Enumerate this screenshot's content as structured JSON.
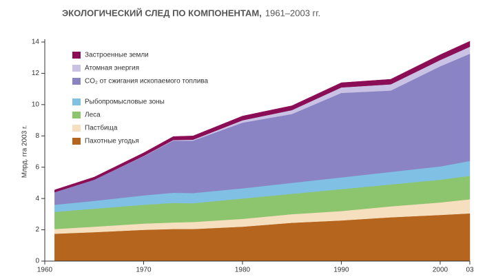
{
  "chart_data": {
    "type": "stacked_area",
    "title": "ЭКОЛОГИЧЕСКИЙ СЛЕД ПО КОМПОНЕНТАМ,",
    "subtitle": "1961–2003 гг.",
    "y_label": "Млрд. гга 2003 г.",
    "x": [
      1961,
      1965,
      1970,
      1973,
      1975,
      1980,
      1985,
      1990,
      1995,
      2000,
      2003
    ],
    "xlim": [
      1960,
      2003
    ],
    "xticks": [
      1960,
      1970,
      1980,
      1990,
      2000,
      {
        "value": 2003,
        "label": "03"
      }
    ],
    "ylim": [
      0,
      14
    ],
    "yticks": [
      0,
      2,
      4,
      6,
      8,
      10,
      12,
      14
    ],
    "series": [
      {
        "name": "Пахотные угодья",
        "color": "#b5651d",
        "values": [
          1.75,
          1.85,
          2.0,
          2.05,
          2.05,
          2.2,
          2.45,
          2.6,
          2.8,
          2.95,
          3.05
        ]
      },
      {
        "name": "Пастбища",
        "color": "#f6dfbf",
        "values": [
          0.3,
          0.35,
          0.4,
          0.42,
          0.45,
          0.5,
          0.55,
          0.6,
          0.7,
          0.8,
          0.9
        ]
      },
      {
        "name": "Леса",
        "color": "#8dc46e",
        "values": [
          1.1,
          1.15,
          1.2,
          1.25,
          1.2,
          1.3,
          1.3,
          1.4,
          1.4,
          1.45,
          1.5
        ]
      },
      {
        "name": "Рыбопромысловые зоны",
        "color": "#80c0e4",
        "values": [
          0.45,
          0.5,
          0.6,
          0.65,
          0.65,
          0.65,
          0.7,
          0.75,
          0.8,
          0.85,
          0.95
        ]
      },
      {
        "name": "CO₂ от сжигания ископаемого топлива",
        "color": "#8b84c4",
        "values": [
          0.8,
          1.35,
          2.5,
          3.33,
          3.35,
          4.2,
          4.4,
          5.4,
          5.2,
          6.4,
          6.85
        ]
      },
      {
        "name": "Атомная энергия",
        "color": "#c9c2e4",
        "values": [
          0,
          0,
          0.02,
          0.04,
          0.06,
          0.15,
          0.25,
          0.35,
          0.4,
          0.4,
          0.45
        ]
      },
      {
        "name": "Застроенные земли",
        "color": "#8a0d55",
        "values": [
          0.15,
          0.17,
          0.2,
          0.22,
          0.24,
          0.27,
          0.28,
          0.3,
          0.32,
          0.34,
          0.35
        ]
      }
    ]
  }
}
